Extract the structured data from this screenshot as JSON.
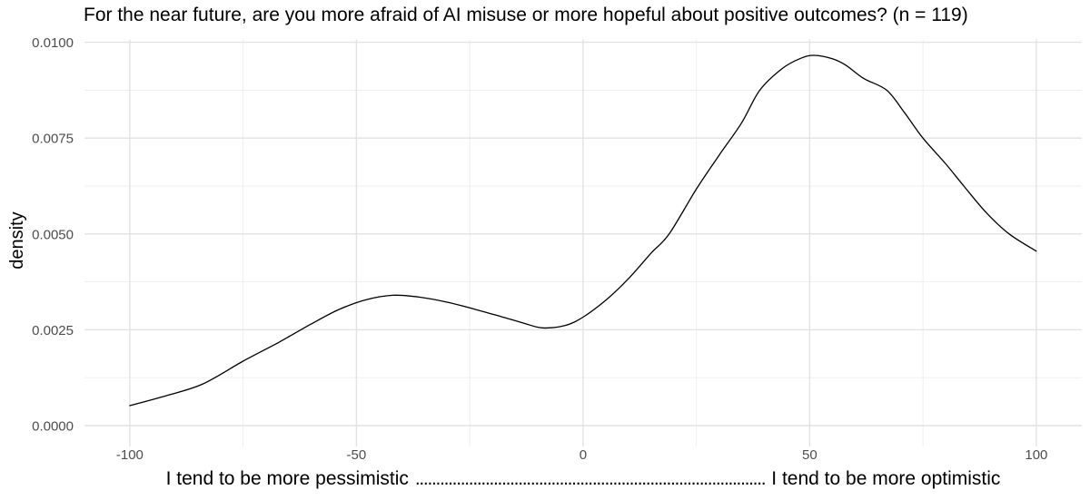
{
  "chart": {
    "title": "For the near future, are you more afraid of AI misuse or more hopeful about positive outcomes? (n = 119)",
    "ylabel": "density",
    "xlabel_left": "I tend to be more pessimistic",
    "xlabel_dots": ".....................................................................................",
    "xlabel_right": "I tend to be more optimistic"
  },
  "chart_data": {
    "type": "line",
    "subtype": "density-curve",
    "title": "For the near future, are you more afraid of AI misuse or more hopeful about positive outcomes? (n = 119)",
    "n": 119,
    "xlabel": "I tend to be more pessimistic  .....  I tend to be more optimistic",
    "ylabel": "density",
    "xlim": [
      -110,
      110
    ],
    "ylim": [
      0,
      0.0101
    ],
    "grid": "major+minor",
    "legend": "none",
    "x_ticks": [
      -100,
      -50,
      0,
      50,
      100
    ],
    "x_tick_labels": [
      "-100",
      "-50",
      "0",
      "50",
      "100"
    ],
    "x_minor_ticks": [
      -75,
      -25,
      25,
      75
    ],
    "y_ticks": [
      0,
      0.0025,
      0.005,
      0.0075,
      0.01
    ],
    "y_tick_labels": [
      "0.0000",
      "0.0025",
      "0.0050",
      "0.0075",
      "0.0100"
    ],
    "y_minor_ticks": [
      0.00125,
      0.00375,
      0.00625,
      0.00875
    ],
    "series": [
      {
        "name": "density",
        "x": [
          -100,
          -92,
          -84,
          -75,
          -67,
          -60,
          -54,
          -48,
          -42,
          -36,
          -30,
          -24,
          -18,
          -13,
          -9,
          -4,
          0,
          5,
          10,
          15,
          19,
          25,
          30,
          35,
          39,
          44,
          48,
          51,
          55,
          58,
          62,
          67,
          71,
          75,
          80,
          84,
          89,
          94,
          100
        ],
        "y": [
          0.00052,
          0.00078,
          0.00108,
          0.00168,
          0.00218,
          0.00265,
          0.00302,
          0.00328,
          0.0034,
          0.00335,
          0.00322,
          0.00304,
          0.00284,
          0.00267,
          0.00255,
          0.00261,
          0.00283,
          0.00327,
          0.00383,
          0.0045,
          0.005,
          0.00617,
          0.00705,
          0.0079,
          0.00875,
          0.00932,
          0.00958,
          0.00966,
          0.00957,
          0.0094,
          0.00905,
          0.00875,
          0.00815,
          0.0075,
          0.00683,
          0.00625,
          0.00555,
          0.005,
          0.00455
        ]
      }
    ],
    "annotations": {
      "local_max": {
        "x": -42,
        "y": 0.0034
      },
      "local_min": {
        "x": -10,
        "y": 0.00255
      },
      "peak": {
        "x": 51,
        "y": 0.00966
      }
    },
    "colors": {
      "line": "#000000",
      "grid_major": "#E2E2E2",
      "grid_minor": "#EDEDED",
      "tick_text": "#4D4D4D",
      "title_text": "#000000",
      "background": "#FFFFFF"
    }
  }
}
